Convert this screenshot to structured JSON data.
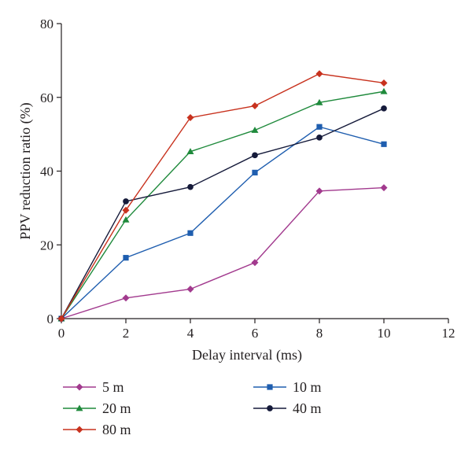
{
  "chart_data": {
    "type": "line",
    "title": "",
    "xlabel": "Delay interval (ms)",
    "ylabel": "PPV reduction ratio (%)",
    "xlim": [
      0,
      12
    ],
    "ylim": [
      0,
      80
    ],
    "xticks": [
      0,
      2,
      4,
      6,
      8,
      10,
      12
    ],
    "yticks": [
      0,
      20,
      40,
      60,
      80
    ],
    "x": [
      0,
      2,
      4,
      6,
      8,
      10
    ],
    "grid": false,
    "legend_position": "bottom",
    "series": [
      {
        "name": "5 m",
        "color": "#a23a8e",
        "marker": "diamond",
        "values": [
          0,
          5.6,
          8.0,
          15.2,
          34.6,
          35.5
        ]
      },
      {
        "name": "10 m",
        "color": "#1f5eaf",
        "marker": "square",
        "values": [
          0,
          16.5,
          23.2,
          39.6,
          52.0,
          47.3
        ]
      },
      {
        "name": "20 m",
        "color": "#1f8a3c",
        "marker": "triangle",
        "values": [
          0,
          26.8,
          45.3,
          51.1,
          58.6,
          61.6
        ]
      },
      {
        "name": "40 m",
        "color": "#151a3a",
        "marker": "circle",
        "values": [
          0,
          31.8,
          35.7,
          44.3,
          49.1,
          57.0
        ]
      },
      {
        "name": "80 m",
        "color": "#c8321e",
        "marker": "diamond",
        "values": [
          0,
          29.4,
          54.5,
          57.7,
          66.4,
          63.9
        ]
      }
    ]
  }
}
